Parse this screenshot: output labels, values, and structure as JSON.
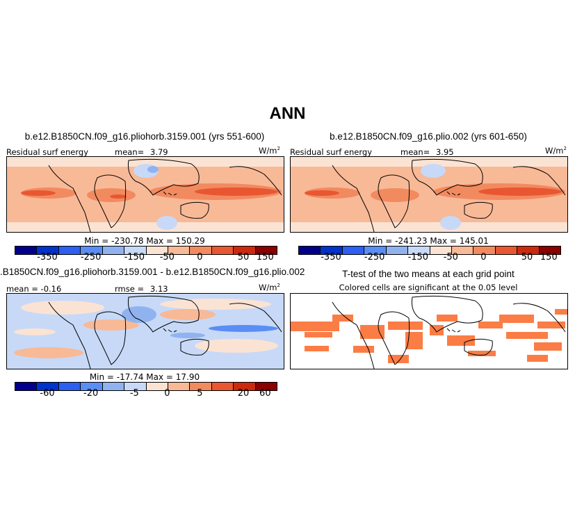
{
  "title": "ANN",
  "colors": {
    "scale11": [
      "#00008b",
      "#0033cc",
      "#2d5ff0",
      "#5a8ef5",
      "#90b3f0",
      "#c7d9f7",
      "#fbe3d4",
      "#f8b997",
      "#f28a60",
      "#e85732",
      "#cc2a0e",
      "#8b0000"
    ],
    "sig": "#fb7d45",
    "land": "#000000"
  },
  "panels": [
    {
      "id": "p1",
      "title": "b.e12.B1850CN.f09_g16.pliohorb.3159.001 (yrs 551-600)",
      "left_label": "Residual surf energy",
      "stat_label": "mean=",
      "stat_value": "3.79",
      "units": "W/m",
      "units_sup": "2",
      "minmax": "Min = -230.78  Max = 150.29",
      "ticks": [
        "-350",
        "-250",
        "-150",
        "-50",
        "0",
        "50",
        "150"
      ]
    },
    {
      "id": "p2",
      "title": "b.e12.B1850CN.f09_g16.plio.002 (yrs 601-650)",
      "left_label": "Residual surf energy",
      "stat_label": "mean=",
      "stat_value": "3.95",
      "units": "W/m",
      "units_sup": "2",
      "minmax": "Min = -241.23  Max = 145.01",
      "ticks": [
        "-350",
        "-250",
        "-150",
        "-50",
        "0",
        "50",
        "150"
      ]
    },
    {
      "id": "p3",
      "title": ".B1850CN.f09_g16.pliohorb.3159.001 - b.e12.B1850CN.f09_g16.plio.002",
      "left_label": "mean =  -0.16",
      "stat_label": "rmse =",
      "stat_value": "3.13",
      "units": "W/m",
      "units_sup": "2",
      "minmax": "Min = -17.74  Max =  17.90",
      "ticks": [
        "-60",
        "-20",
        "-5",
        "0",
        "5",
        "20",
        "60"
      ]
    },
    {
      "id": "p4",
      "title": "T-test of the two means at each grid point",
      "subtitle": "Colored cells are significant at the 0.05 level"
    }
  ]
}
